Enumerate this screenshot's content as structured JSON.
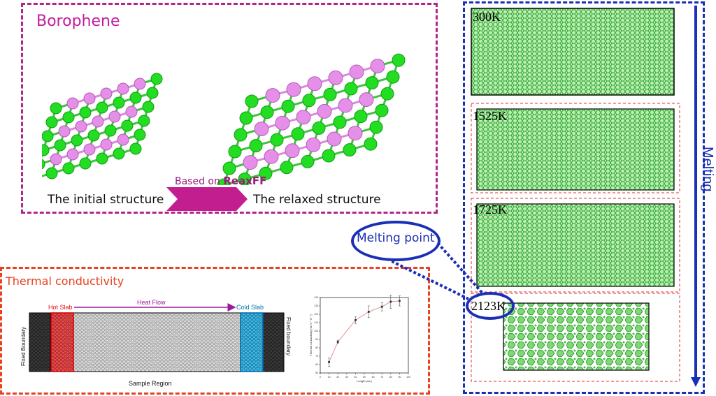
{
  "borophene_panel": {
    "title": "Borophene",
    "initial_label": "The initial structure",
    "relaxed_label": "The relaxed structure",
    "arrow_prefix": "Based on ",
    "arrow_bold": "ReaxFF"
  },
  "thermal_panel": {
    "title": "Thermal conductivity",
    "hot_slab": "Hot Slab",
    "heat_flow": "Heat Flow",
    "cold_slab": "Cold Slab",
    "fixed_left": "Fixed Boundary",
    "fixed_right": "Fixed boundary",
    "sample_region": "Sample Region"
  },
  "melting_panel": {
    "side_label": "Melting",
    "temperatures": [
      "300K",
      "1525K",
      "1725K",
      "2123K"
    ],
    "melting_point_label": "Melting point"
  },
  "colors": {
    "boron_green": "#22dd22",
    "boron_pink": "#e58fe8",
    "magenta_frame": "#b0268a",
    "orange_frame": "#e8411e",
    "blue_frame": "#1a2fb5"
  },
  "chart_data": {
    "type": "line",
    "xlabel": "Length (nm)",
    "ylabel": "Thermal conductivity (W m⁻¹ K⁻¹)",
    "xlim": [
      0,
      100
    ],
    "ylim": [
      50,
      140
    ],
    "xticks": [
      0,
      10,
      20,
      30,
      40,
      50,
      60,
      70,
      80,
      90,
      100
    ],
    "yticks": [
      50,
      60,
      70,
      80,
      90,
      100,
      110,
      120,
      130,
      140
    ],
    "series": [
      {
        "x": [
          10,
          20,
          40,
          55,
          70,
          80,
          90
        ],
        "y": [
          63,
          87,
          113,
          123,
          129,
          135,
          136
        ],
        "err": [
          5,
          2,
          4,
          7,
          5,
          8,
          6
        ]
      }
    ]
  }
}
